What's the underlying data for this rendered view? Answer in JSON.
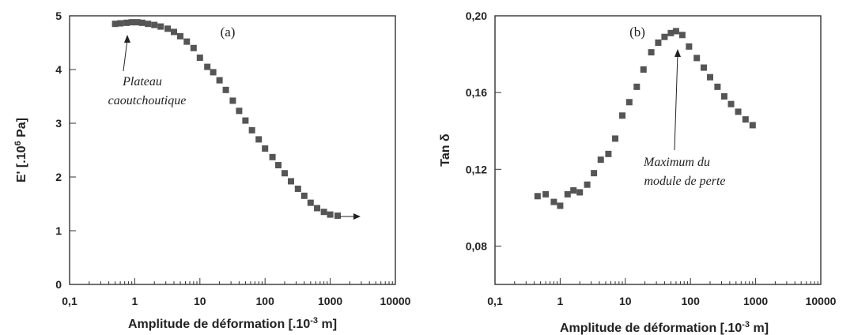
{
  "chart_data": [
    {
      "type": "scatter",
      "panel_label": "(a)",
      "xlabel": "Amplitude de déformation [.10",
      "xlabel_sup": "-3",
      "xlabel_tail": " m]",
      "ylabel": "E' [.10",
      "ylabel_sup": "6",
      "ylabel_tail": " Pa]",
      "x_scale": "log",
      "xlim": [
        0.1,
        10000
      ],
      "ylim": [
        0,
        5
      ],
      "x_ticks": [
        0.1,
        1,
        10,
        100,
        1000,
        10000
      ],
      "x_tick_labels": [
        "0,1",
        "1",
        "10",
        "100",
        "1000",
        "10000"
      ],
      "y_ticks": [
        0,
        1,
        2,
        3,
        4,
        5
      ],
      "y_tick_labels": [
        "0",
        "1",
        "2",
        "3",
        "4",
        "5"
      ],
      "marker": "square",
      "marker_color": "#555555",
      "series": [
        {
          "x": [
            0.5,
            0.6,
            0.75,
            0.9,
            1.1,
            1.3,
            1.6,
            2.0,
            2.5,
            3.2,
            4.0,
            5.0,
            6.3,
            8.0,
            10,
            13,
            16,
            20,
            25,
            32,
            40,
            50,
            63,
            80,
            100,
            130,
            160,
            200,
            250,
            320,
            400,
            500,
            630,
            800,
            1000,
            1300
          ],
          "y": [
            4.85,
            4.86,
            4.87,
            4.88,
            4.88,
            4.87,
            4.85,
            4.83,
            4.8,
            4.76,
            4.7,
            4.62,
            4.52,
            4.4,
            4.22,
            4.05,
            3.95,
            3.8,
            3.62,
            3.42,
            3.23,
            3.05,
            2.87,
            2.7,
            2.53,
            2.37,
            2.22,
            2.07,
            1.92,
            1.78,
            1.65,
            1.52,
            1.42,
            1.35,
            1.3,
            1.28
          ]
        }
      ],
      "annotations": [
        {
          "text_lines": [
            "Plateau",
            "caoutchoutique"
          ],
          "points_to_x": 1,
          "points_to_y": 4.88
        }
      ]
    },
    {
      "type": "scatter",
      "panel_label": "(b)",
      "xlabel": "Amplitude de déformation [.10",
      "xlabel_sup": "-3",
      "xlabel_tail": " m]",
      "ylabel": "Tan δ",
      "x_scale": "log",
      "xlim": [
        0.1,
        10000
      ],
      "ylim": [
        0.06,
        0.2
      ],
      "x_ticks": [
        0.1,
        1,
        10,
        100,
        1000,
        10000
      ],
      "x_tick_labels": [
        "0,1",
        "1",
        "10",
        "100",
        "1000",
        "10000"
      ],
      "y_ticks": [
        0.08,
        0.12,
        0.16,
        0.2
      ],
      "y_tick_labels": [
        "0,08",
        "0,12",
        "0,16",
        "0,20"
      ],
      "marker": "square",
      "marker_color": "#555555",
      "series": [
        {
          "x": [
            0.45,
            0.6,
            0.8,
            1.0,
            1.3,
            1.6,
            2.0,
            2.6,
            3.3,
            4.2,
            5.5,
            7.0,
            9.0,
            11.5,
            15,
            19,
            25,
            32,
            40,
            50,
            60,
            75,
            95,
            125,
            160,
            200,
            260,
            330,
            420,
            540,
            700,
            900
          ],
          "y": [
            0.106,
            0.107,
            0.103,
            0.101,
            0.107,
            0.109,
            0.108,
            0.112,
            0.118,
            0.125,
            0.128,
            0.136,
            0.148,
            0.155,
            0.163,
            0.172,
            0.181,
            0.186,
            0.189,
            0.191,
            0.192,
            0.19,
            0.184,
            0.178,
            0.173,
            0.168,
            0.163,
            0.158,
            0.154,
            0.15,
            0.146,
            0.143
          ]
        }
      ],
      "annotations": [
        {
          "text_lines": [
            "Maximum du",
            "module de perte"
          ],
          "points_to_x": 60,
          "points_to_y": 0.192
        }
      ]
    }
  ]
}
